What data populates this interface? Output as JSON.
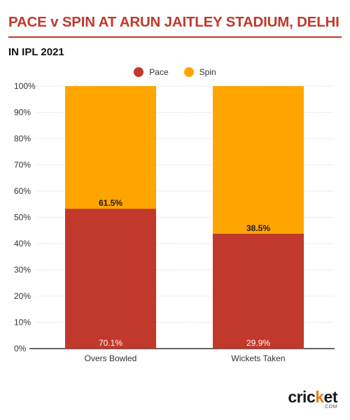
{
  "title": "PACE v SPIN AT ARUN JAITLEY STADIUM, DELHI",
  "subtitle": "IN IPL 2021",
  "colors": {
    "accent": "#c0392b",
    "pace": "#c0392b",
    "spin": "#ffa500"
  },
  "legend": {
    "pace": "Pace",
    "spin": "Spin"
  },
  "chart_data": {
    "type": "bar",
    "stacked": true,
    "categories": [
      "Overs Bowled",
      "Wickets Taken"
    ],
    "series": [
      {
        "name": "Pace",
        "values": [
          53.3,
          43.8
        ],
        "labels": [
          "70.1%",
          "29.9%"
        ]
      },
      {
        "name": "Spin",
        "values": [
          46.7,
          56.2
        ],
        "labels": [
          "61.5%",
          "38.5%"
        ]
      }
    ],
    "y_ticks": [
      "0%",
      "10%",
      "20%",
      "30%",
      "40%",
      "50%",
      "60%",
      "70%",
      "80%",
      "90%",
      "100%"
    ],
    "ylim": [
      0,
      100
    ],
    "grid": true,
    "legend_position": "top-center",
    "xlabel": "",
    "ylabel": ""
  },
  "logo": {
    "main_a": "cric",
    "main_dot": "k",
    "main_b": "et",
    "sub": ".COM"
  }
}
